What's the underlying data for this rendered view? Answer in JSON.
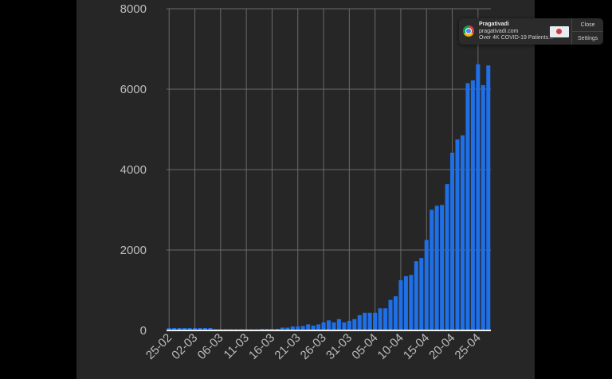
{
  "chart_data": {
    "type": "bar",
    "ylim": [
      0,
      8000
    ],
    "yticks": [
      0,
      2000,
      4000,
      6000,
      8000
    ],
    "tick_labels_y": [
      "0",
      "2000",
      "4000",
      "6000",
      "8000"
    ],
    "x_tick_labels": [
      "25-02",
      "02-03",
      "06-03",
      "11-03",
      "16-03",
      "21-03",
      "26-03",
      "31-03",
      "05-04",
      "10-04",
      "15-04",
      "20-04",
      "25-04"
    ],
    "x_tick_positions": [
      0,
      5,
      10,
      15,
      20,
      25,
      30,
      35,
      40,
      45,
      50,
      55,
      60
    ],
    "grid": true,
    "bar_color": "#1f6fe6",
    "values": [
      60,
      60,
      60,
      60,
      60,
      60,
      60,
      60,
      60,
      30,
      30,
      30,
      30,
      30,
      30,
      30,
      30,
      30,
      40,
      40,
      40,
      40,
      70,
      70,
      100,
      100,
      110,
      150,
      120,
      150,
      200,
      250,
      200,
      280,
      200,
      240,
      280,
      380,
      440,
      440,
      440,
      550,
      550,
      760,
      850,
      1250,
      1350,
      1380,
      1720,
      1800,
      2250,
      3000,
      3100,
      3120,
      3640,
      4420,
      4750,
      4850,
      6150,
      6220,
      6620,
      6100,
      6590
    ]
  },
  "notification": {
    "title": "Pragativadi",
    "site": "pragativadi.com",
    "body": "Over 4K COVID-19 Patients...",
    "close_label": "Close",
    "settings_label": "Settings",
    "icon": "chrome-icon"
  }
}
